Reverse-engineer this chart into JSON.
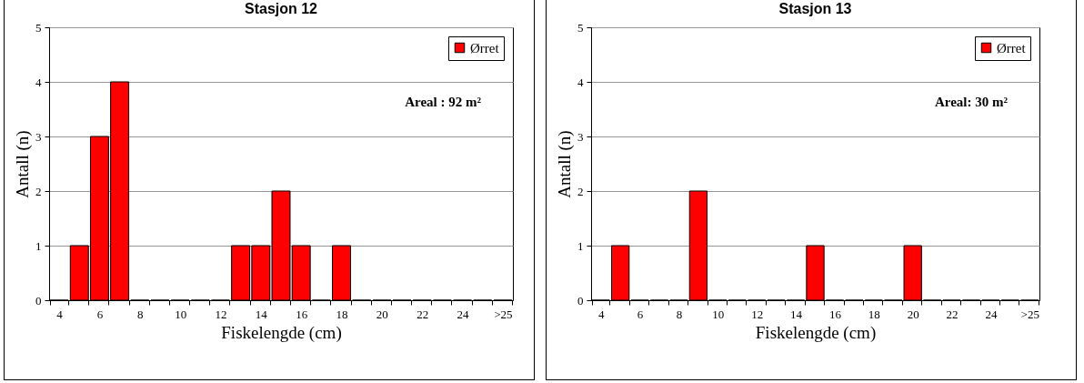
{
  "chart_data": [
    {
      "type": "bar",
      "title": "Stasjon 12",
      "xlabel": "Fiskelengde  (cm)",
      "ylabel": "Antall  (n)",
      "categories": [
        "4",
        null,
        "6",
        null,
        "8",
        null,
        "10",
        null,
        "12",
        null,
        "14",
        null,
        "16",
        null,
        "18",
        null,
        "20",
        null,
        "22",
        null,
        "24",
        null,
        ">25"
      ],
      "series": [
        {
          "name": "Ørret",
          "color": "#ff0000",
          "values": [
            0,
            1,
            3,
            4,
            0,
            0,
            0,
            0,
            0,
            1,
            1,
            2,
            1,
            0,
            1,
            0,
            0,
            0,
            0,
            0,
            0,
            0,
            0
          ]
        }
      ],
      "ylim": [
        0,
        5
      ],
      "yticks": [
        0,
        1,
        2,
        3,
        4,
        5
      ],
      "grid": "y",
      "legend": "top right",
      "annotations": [
        "Areal : 92 m²"
      ]
    },
    {
      "type": "bar",
      "title": "Stasjon 13",
      "xlabel": "Fiskelengde  (cm)",
      "ylabel": "Antall  (n)",
      "categories": [
        "4",
        null,
        "6",
        null,
        "8",
        null,
        "10",
        null,
        "12",
        null,
        "14",
        null,
        "16",
        null,
        "18",
        null,
        "20",
        null,
        "22",
        null,
        "24",
        null,
        ">25"
      ],
      "series": [
        {
          "name": "Ørret",
          "color": "#ff0000",
          "values": [
            0,
            1,
            0,
            0,
            0,
            2,
            0,
            0,
            0,
            0,
            0,
            1,
            0,
            0,
            0,
            0,
            1,
            0,
            0,
            0,
            0,
            0,
            0
          ]
        }
      ],
      "ylim": [
        0,
        5
      ],
      "yticks": [
        0,
        1,
        2,
        3,
        4,
        5
      ],
      "grid": "y",
      "legend": "top right",
      "annotations": [
        "Areal: 30 m²"
      ]
    }
  ]
}
